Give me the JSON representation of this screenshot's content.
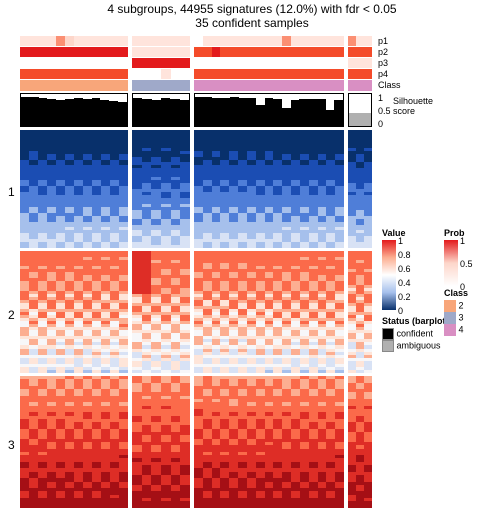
{
  "title": "4 subgroups, 44955 signatures (12.0%) with fdr < 0.05",
  "subtitle": "35 confident samples",
  "layout": {
    "block_widths": [
      108,
      58,
      150,
      24
    ],
    "gap": 4,
    "prob_row_height": 10,
    "class_row_height": 11,
    "silhouette_height": 34,
    "heatmap_heights": [
      118,
      122,
      132
    ]
  },
  "prob_labels": [
    "p1",
    "p2",
    "p3",
    "p4"
  ],
  "class_label": "Class",
  "silhouette_label": "Silhouette\nscore",
  "silhouette_ticks": [
    "1",
    "0.5",
    "0"
  ],
  "row_labels": [
    "1",
    "2",
    "3"
  ],
  "colors": {
    "white": "#ffffff",
    "prob_light": "#ffe4dc",
    "prob_low": "#fdd6ca",
    "prob_mid": "#fb8f73",
    "prob_high": "#f44b2a",
    "prob_max": "#e31a1c",
    "class2": "#f8a67a",
    "class3": "#9fa9c9",
    "class4": "#d98fc3",
    "black": "#000000",
    "grey": "#b0b0b0",
    "blue_deep": "#08306b",
    "blue_high": "#1b4db3",
    "blue_mid": "#4f7ed8",
    "blue_low": "#a6c0ec",
    "blue_vlow": "#d8e2f5",
    "red_deep": "#a50f15",
    "red_high": "#de2d26",
    "red_mid": "#fb6a4a",
    "red_low": "#fcae91",
    "red_vlow": "#fee5d9",
    "near_white": "#f7f7f9"
  },
  "prob_rows": {
    "p1": [
      [
        0.15,
        0.1,
        0.12,
        0.08,
        0.55,
        0.18,
        0.1,
        0.1,
        0.1,
        0.1,
        0.08,
        0.1
      ],
      [
        0.1,
        0.12,
        0.08,
        0.1,
        0.1,
        0.1
      ],
      [
        0.05,
        0.1,
        0.1,
        0.08,
        0.08,
        0.1,
        0.1,
        0.1,
        0.12,
        0.1,
        0.45,
        0.08,
        0.1,
        0.1,
        0.1,
        0.1,
        0.1
      ],
      [
        0.4,
        0.1,
        0.1
      ]
    ],
    "p2": [
      [
        1,
        1,
        1,
        1,
        1,
        1,
        1,
        1,
        1,
        1,
        1,
        1
      ],
      [
        0.1,
        0.1,
        0.1,
        0.1,
        0.1,
        0.1
      ],
      [
        0.82,
        0.85,
        0.88,
        0.82,
        0.85,
        0.82,
        0.85,
        0.82,
        0.85,
        0.82,
        0.85,
        0.82,
        0.85,
        0.82,
        0.85,
        0.82,
        0.85
      ],
      [
        0.8,
        0.8,
        0.82
      ]
    ],
    "p3": [
      [
        0.05,
        0.05,
        0.05,
        0.05,
        0.05,
        0.05,
        0.05,
        0.05,
        0.05,
        0.05,
        0.05,
        0.05
      ],
      [
        1,
        1,
        1,
        1,
        1,
        1
      ],
      [
        0.05,
        0.05,
        0.05,
        0.05,
        0.05,
        0.05,
        0.05,
        0.05,
        0.05,
        0.05,
        0.05,
        0.05,
        0.05,
        0.05,
        0.05,
        0.05,
        0.05
      ],
      [
        0.1,
        0.1,
        0.1
      ]
    ],
    "p4": [
      [
        0.7,
        0.7,
        0.7,
        0.7,
        0.7,
        0.7,
        0.7,
        0.7,
        0.7,
        0.7,
        0.7,
        0.7
      ],
      [
        0.04,
        0.04,
        0.04,
        0.08,
        0.04,
        0.04
      ],
      [
        0.72,
        0.72,
        0.72,
        0.72,
        0.72,
        0.72,
        0.72,
        0.72,
        0.72,
        0.72,
        0.72,
        0.72,
        0.72,
        0.72,
        0.72,
        0.72,
        0.72
      ],
      [
        0.7,
        0.7,
        0.7
      ]
    ]
  },
  "class_row": [
    [
      "class2",
      "class2",
      "class2",
      "class2",
      "class2",
      "class2",
      "class2",
      "class2",
      "class2",
      "class2",
      "class2",
      "class2"
    ],
    [
      "class3",
      "class3",
      "class3",
      "class3",
      "class3",
      "class3"
    ],
    [
      "class4",
      "class4",
      "class4",
      "class4",
      "class4",
      "class4",
      "class4",
      "class4",
      "class4",
      "class4",
      "class4",
      "class4",
      "class4",
      "class4",
      "class4",
      "class4",
      "class4"
    ],
    [
      "class4",
      "class4",
      "class4"
    ]
  ],
  "silhouette": [
    [
      0.92,
      0.92,
      0.88,
      0.85,
      0.82,
      0.85,
      0.88,
      0.85,
      0.88,
      0.82,
      0.78,
      0.75
    ],
    [
      0.88,
      0.85,
      0.82,
      0.88,
      0.85,
      0.8
    ],
    [
      0.9,
      0.9,
      0.88,
      0.88,
      0.9,
      0.88,
      0.88,
      0.65,
      0.88,
      0.85,
      0.55,
      0.82,
      0.85,
      0.85,
      0.85,
      0.5,
      0.82
    ],
    [
      0.4,
      0.4,
      0.4
    ]
  ],
  "silhouette_status": [
    [
      "b",
      "b",
      "b",
      "b",
      "b",
      "b",
      "b",
      "b",
      "b",
      "b",
      "b",
      "b"
    ],
    [
      "b",
      "b",
      "b",
      "b",
      "b",
      "b"
    ],
    [
      "b",
      "b",
      "b",
      "b",
      "b",
      "b",
      "b",
      "b",
      "b",
      "b",
      "b",
      "b",
      "b",
      "b",
      "b",
      "b",
      "b"
    ],
    [
      "g",
      "g",
      "g"
    ]
  ],
  "legends": {
    "value": {
      "title": "Value",
      "ticks": [
        "1",
        "0.8",
        "0.6",
        "0.4",
        "0.2",
        "0"
      ]
    },
    "prob": {
      "title": "Prob",
      "ticks": [
        "1",
        "0.5",
        "0"
      ]
    },
    "status": {
      "title": "Status (barplots)",
      "items": [
        {
          "label": "confident",
          "key": "black"
        },
        {
          "label": "ambiguous",
          "key": "grey"
        }
      ]
    },
    "class": {
      "title": "Class",
      "items": [
        {
          "label": "2",
          "key": "class2"
        },
        {
          "label": "3",
          "key": "class3"
        },
        {
          "label": "4",
          "key": "class4"
        }
      ]
    }
  }
}
